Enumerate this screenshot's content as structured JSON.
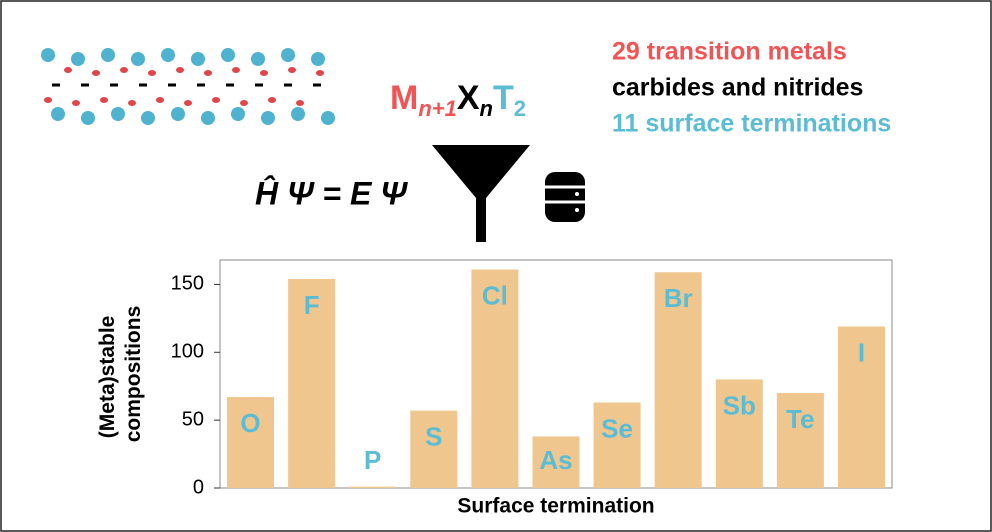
{
  "header": {
    "formula": {
      "m": "M",
      "m_sub": "n+1",
      "x": "X",
      "x_sub": "n",
      "t": "T",
      "t_sub": "2"
    },
    "lines": [
      "29 transition metals",
      "carbides and nitrides",
      "11 surface terminations"
    ],
    "equation": "Ĥ Ψ = E Ψ"
  },
  "chart_data": {
    "type": "bar",
    "x_label": "Surface termination",
    "y_label": [
      "(Meta)stable",
      "compositions"
    ],
    "categories": [
      "O",
      "F",
      "P",
      "S",
      "Cl",
      "As",
      "Se",
      "Br",
      "Sb",
      "Te",
      "I"
    ],
    "values": [
      67,
      154,
      1,
      57,
      161,
      38,
      63,
      159,
      80,
      70,
      119
    ],
    "color": "#efc68e",
    "label_color": "#5bbcd6",
    "ylim": [
      0,
      168
    ],
    "yticks": [
      0,
      50,
      100,
      150
    ],
    "grid": false
  }
}
